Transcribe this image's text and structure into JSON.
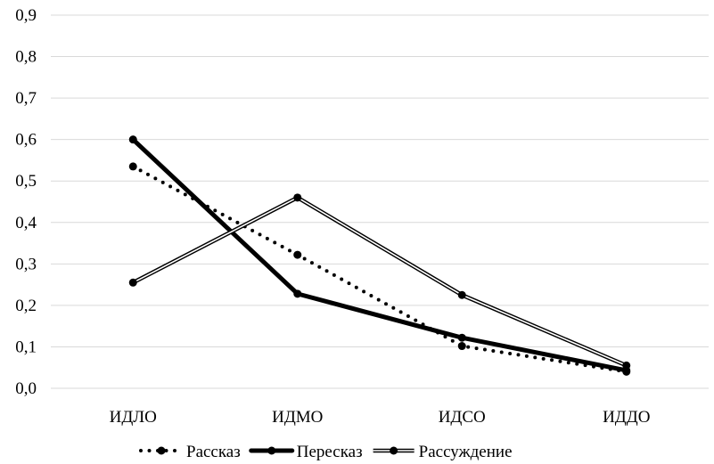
{
  "chart_data": {
    "type": "line",
    "title": "",
    "xlabel": "",
    "ylabel": "",
    "categories": [
      "ИДЛО",
      "ИДМО",
      "ИДСО",
      "ИДДО"
    ],
    "ylim": [
      0,
      0.9
    ],
    "yticks": [
      "0,0",
      "0,1",
      "0,2",
      "0,3",
      "0,4",
      "0,5",
      "0,6",
      "0,7",
      "0,8",
      "0,9"
    ],
    "grid": true,
    "legend_position": "bottom",
    "series": [
      {
        "name": "Рассказ",
        "values": [
          0.535,
          0.322,
          0.102,
          0.04
        ],
        "style": "dotted",
        "color": "#000000"
      },
      {
        "name": "Пересказ",
        "values": [
          0.6,
          0.228,
          0.122,
          0.043
        ],
        "style": "thick",
        "color": "#000000"
      },
      {
        "name": "Рассуждение",
        "values": [
          0.255,
          0.46,
          0.225,
          0.055
        ],
        "style": "double",
        "color": "#000000"
      }
    ]
  }
}
